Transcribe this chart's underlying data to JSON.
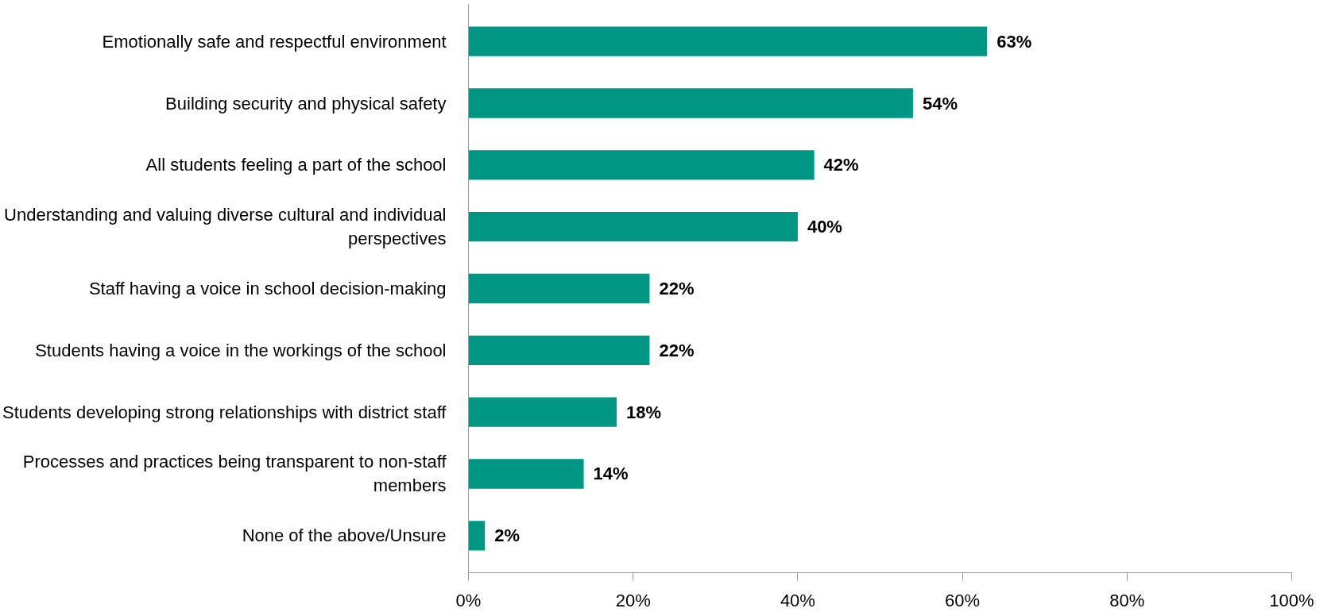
{
  "chart_data": {
    "type": "bar",
    "orientation": "horizontal",
    "categories": [
      "Emotionally safe and respectful environment",
      "Building security and physical safety",
      "All students feeling a part of the school",
      "Understanding and valuing diverse cultural and individual perspectives",
      "Staff having a voice in school decision-making",
      "Students having a voice in the workings of the school",
      "Students developing strong relationships with district staff",
      "Processes and practices being transparent to non-staff members",
      "None of the above/Unsure"
    ],
    "values": [
      63,
      54,
      42,
      40,
      22,
      22,
      18,
      14,
      2
    ],
    "value_labels": [
      "63%",
      "54%",
      "42%",
      "40%",
      "22%",
      "22%",
      "18%",
      "14%",
      "2%"
    ],
    "color": "#009684",
    "xlim": [
      0,
      100
    ],
    "xticks": [
      {
        "value": 0,
        "label": "0%"
      },
      {
        "value": 20,
        "label": "20%"
      },
      {
        "value": 40,
        "label": "40%"
      },
      {
        "value": 60,
        "label": "60%"
      },
      {
        "value": 80,
        "label": "80%"
      },
      {
        "value": 100,
        "label": "100%"
      }
    ],
    "grid": false
  }
}
